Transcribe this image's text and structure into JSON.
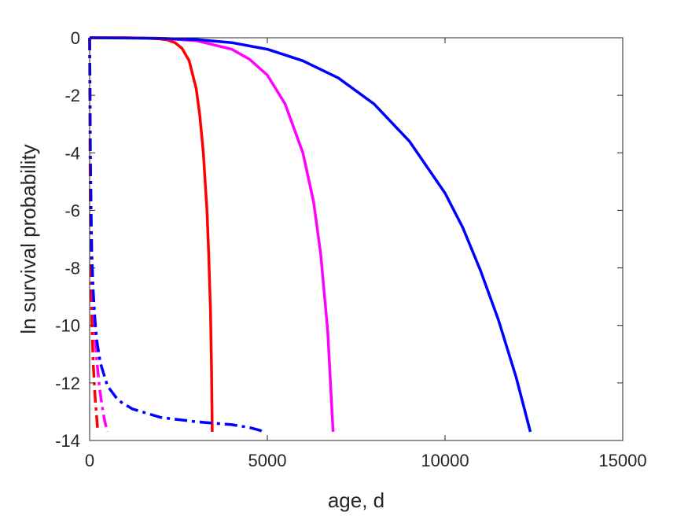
{
  "chart_data": {
    "type": "line",
    "title": "",
    "xlabel": "age, d",
    "ylabel": "ln survival probability",
    "xlim": [
      0,
      15000
    ],
    "ylim": [
      -14,
      0
    ],
    "xticks": [
      0,
      5000,
      10000,
      15000
    ],
    "yticks": [
      0,
      -2,
      -4,
      -6,
      -8,
      -10,
      -12,
      -14
    ],
    "grid": false,
    "legend": "none",
    "colors": {
      "axis": "#262626",
      "red": "#ff0000",
      "magenta": "#ff00ff",
      "blue": "#0000ff"
    },
    "series": [
      {
        "color": "#ff0000",
        "style": "solid",
        "x": [
          0,
          500,
          1000,
          1500,
          2000,
          2200,
          2400,
          2600,
          2800,
          3000,
          3100,
          3200,
          3300,
          3350,
          3400,
          3430,
          3450
        ],
        "y": [
          0,
          0,
          0,
          -0.01,
          -0.04,
          -0.08,
          -0.17,
          -0.37,
          -0.8,
          -1.78,
          -2.7,
          -4.0,
          -6.0,
          -7.5,
          -9.5,
          -11.5,
          -13.7
        ]
      },
      {
        "color": "#ff00ff",
        "style": "solid",
        "x": [
          0,
          1000,
          2000,
          3000,
          4000,
          4500,
          5000,
          5500,
          6000,
          6300,
          6500,
          6700,
          6850
        ],
        "y": [
          0,
          0,
          -0.02,
          -0.1,
          -0.4,
          -0.75,
          -1.3,
          -2.3,
          -4.0,
          -5.7,
          -7.5,
          -10.2,
          -13.7
        ]
      },
      {
        "color": "#0000ff",
        "style": "solid",
        "x": [
          0,
          2000,
          3000,
          4000,
          5000,
          6000,
          7000,
          8000,
          9000,
          10000,
          10500,
          11000,
          11500,
          12000,
          12400
        ],
        "y": [
          0,
          -0.02,
          -0.06,
          -0.17,
          -0.4,
          -0.8,
          -1.4,
          -2.3,
          -3.6,
          -5.4,
          -6.6,
          -8.1,
          -9.8,
          -11.8,
          -13.7
        ]
      },
      {
        "color": "#ff0000",
        "style": "dashdot",
        "x": [
          0,
          5,
          10,
          20,
          30,
          50,
          70,
          100,
          130,
          160,
          200,
          230
        ],
        "y": [
          0,
          -2,
          -4,
          -6,
          -7.5,
          -9,
          -10.2,
          -11.3,
          -12,
          -12.6,
          -13.2,
          -13.7
        ]
      },
      {
        "color": "#ff00ff",
        "style": "dashdot",
        "x": [
          0,
          10,
          20,
          40,
          60,
          100,
          150,
          200,
          280,
          350,
          420,
          500
        ],
        "y": [
          0,
          -2,
          -4,
          -6,
          -7.5,
          -9,
          -10.3,
          -11.2,
          -12.2,
          -12.8,
          -13.3,
          -13.7
        ]
      },
      {
        "color": "#0000ff",
        "style": "dashdot",
        "x": [
          0,
          10,
          20,
          40,
          60,
          100,
          150,
          200,
          300,
          500,
          800,
          1200,
          2000,
          3000,
          4000,
          4500,
          4800,
          4950
        ],
        "y": [
          0,
          -2,
          -4,
          -6,
          -7.5,
          -8.8,
          -9.8,
          -10.5,
          -11.3,
          -12.1,
          -12.6,
          -12.9,
          -13.2,
          -13.35,
          -13.45,
          -13.55,
          -13.65,
          -13.75
        ]
      }
    ]
  }
}
